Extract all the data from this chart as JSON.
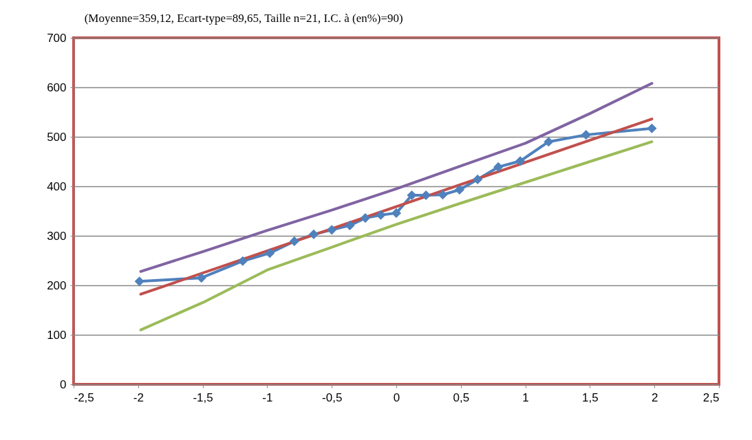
{
  "chart_data": {
    "type": "line",
    "title": "(Moyenne=359,12, Ecart-type=89,65, Taille n=21, I.C. à (en%)=90)",
    "xlim": [
      -2.5,
      2.5
    ],
    "xticks": [
      {
        "value": -2.5,
        "label": "-2,5"
      },
      -2,
      {
        "value": -1.5,
        "label": "-1,5"
      },
      -1,
      {
        "value": -0.5,
        "label": "-0,5"
      },
      0,
      {
        "value": 0.5,
        "label": "0,5"
      },
      1,
      {
        "value": 1.5,
        "label": "1,5"
      },
      2,
      {
        "value": 2.5,
        "label": "2,5"
      }
    ],
    "ylim": [
      0,
      700
    ],
    "yticks": [
      0,
      100,
      200,
      300,
      400,
      500,
      600,
      700
    ],
    "grid": "y",
    "legend": false,
    "series": [
      {
        "color": "#4f81bd",
        "marker": "diamond",
        "x": [
          -1.99,
          -1.51,
          -1.19,
          -0.98,
          -0.79,
          -0.64,
          -0.5,
          -0.36,
          -0.24,
          -0.12,
          0,
          0.12,
          0.23,
          0.36,
          0.49,
          0.63,
          0.79,
          0.96,
          1.18,
          1.47,
          1.98
        ],
        "values": [
          208,
          215,
          249,
          265,
          289,
          303,
          312,
          321,
          336,
          342,
          346,
          382,
          382,
          383,
          393,
          414,
          439,
          451,
          490,
          504,
          517
        ]
      },
      {
        "color": "#c0504d",
        "marker": "none",
        "x": [
          -1.98,
          1.98
        ],
        "values": [
          182,
          536
        ]
      },
      {
        "color": "#8064a2",
        "marker": "none",
        "x": [
          -1.98,
          -1.5,
          -1,
          -0.5,
          0,
          0.5,
          1,
          1.5,
          1.98
        ],
        "values": [
          228,
          268,
          311,
          352,
          395,
          441,
          487,
          547,
          608
        ]
      },
      {
        "color": "#9bbb59",
        "marker": "none",
        "x": [
          -1.98,
          -1.5,
          -1,
          -0.5,
          0,
          0.5,
          1,
          1.5,
          1.98
        ],
        "values": [
          110,
          165,
          231,
          277,
          323,
          366,
          408,
          450,
          490
        ]
      }
    ]
  }
}
